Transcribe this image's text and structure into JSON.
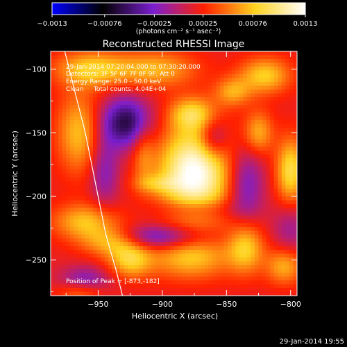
{
  "chart_data": {
    "type": "heatmap",
    "title": "Reconstructed RHESSI Image",
    "xlabel": "Heliocentric X (arcsec)",
    "ylabel": "Heliocentric Y (arcsec)",
    "xlim": [
      -987,
      -795
    ],
    "ylim": [
      -278,
      -86
    ],
    "x_ticks": [
      -950,
      -900,
      -850,
      -800
    ],
    "y_ticks": [
      -100,
      -150,
      -200,
      -250
    ],
    "x_tick_labels": [
      "−950",
      "−900",
      "−850",
      "−800"
    ],
    "y_tick_labels": [
      "−100",
      "−150",
      "−200",
      "−250"
    ],
    "colorbar": {
      "range": [
        -0.0013,
        0.0013
      ],
      "ticks": [
        -0.0013,
        -0.00076,
        -0.00025,
        0.00025,
        0.00076,
        0.0013
      ],
      "tick_labels": [
        "−0.0013",
        "−0.00076",
        "−0.00025",
        "0.00025",
        "0.00076",
        "0.0013"
      ],
      "unit_label": "(photons cm⁻² s⁻¹ asec⁻²)",
      "colors": [
        "#0000ff",
        "#000000",
        "#7b1fd0",
        "#ff2000",
        "#ffd21e",
        "#ffffff"
      ]
    },
    "peak": {
      "x": -873,
      "y": -182,
      "value": 0.0013
    },
    "limb_curve": [
      [
        -976,
        -86
      ],
      [
        -960,
        -150
      ],
      [
        -950,
        -200
      ],
      [
        -944,
        -230
      ],
      [
        -936,
        -258
      ],
      [
        -931,
        -278
      ]
    ],
    "annotations": [
      "29-Jan-2014 07:20:04.000 to 07:30:20.000",
      "Detectors: 3F 5F 6F 7F 8F 9F, Att 0",
      "Energy Range: 25.0 - 50.0 keV",
      "Clean     Total counts: 4.04E+04",
      "Position of Peak = [-873,-182]"
    ],
    "sources": [
      {
        "kind": "peak",
        "x": -875,
        "y": -182,
        "amp": 0.00115,
        "sx": 20,
        "sy": 26
      },
      {
        "kind": "pos",
        "x": -877,
        "y": -135,
        "amp": 0.00055,
        "sx": 12,
        "sy": 9
      },
      {
        "kind": "pos",
        "x": -905,
        "y": -100,
        "amp": 0.0005,
        "sx": 22,
        "sy": 10
      },
      {
        "kind": "pos",
        "x": -955,
        "y": -100,
        "amp": 0.0006,
        "sx": 20,
        "sy": 10
      },
      {
        "kind": "pos",
        "x": -965,
        "y": -150,
        "amp": 0.00055,
        "sx": 12,
        "sy": 22
      },
      {
        "kind": "pos",
        "x": -820,
        "y": -105,
        "amp": 0.0006,
        "sx": 14,
        "sy": 10
      },
      {
        "kind": "pos",
        "x": -845,
        "y": -118,
        "amp": 0.00045,
        "sx": 10,
        "sy": 8
      },
      {
        "kind": "pos",
        "x": -825,
        "y": -150,
        "amp": 0.0005,
        "sx": 8,
        "sy": 12
      },
      {
        "kind": "pos",
        "x": -800,
        "y": -180,
        "amp": 0.0007,
        "sx": 8,
        "sy": 18
      },
      {
        "kind": "pos",
        "x": -960,
        "y": -220,
        "amp": 0.00055,
        "sx": 18,
        "sy": 10
      },
      {
        "kind": "pos",
        "x": -940,
        "y": -235,
        "amp": 0.00055,
        "sx": 16,
        "sy": 8
      },
      {
        "kind": "pos",
        "x": -925,
        "y": -250,
        "amp": 0.0006,
        "sx": 12,
        "sy": 10
      },
      {
        "kind": "pos",
        "x": -878,
        "y": -248,
        "amp": 0.00055,
        "sx": 22,
        "sy": 12
      },
      {
        "kind": "pos",
        "x": -835,
        "y": -240,
        "amp": 0.0006,
        "sx": 10,
        "sy": 14
      },
      {
        "kind": "pos",
        "x": -805,
        "y": -255,
        "amp": 0.0005,
        "sx": 10,
        "sy": 10
      },
      {
        "kind": "pos",
        "x": -915,
        "y": -165,
        "amp": 0.0003,
        "sx": 6,
        "sy": 18
      },
      {
        "kind": "pos",
        "x": -905,
        "y": -190,
        "amp": 0.0003,
        "sx": 12,
        "sy": 5
      },
      {
        "kind": "pos",
        "x": -965,
        "y": -275,
        "amp": 0.0003,
        "sx": 12,
        "sy": 6
      },
      {
        "kind": "neg",
        "x": -928,
        "y": -142,
        "amp": -0.0008,
        "sx": 14,
        "sy": 14
      },
      {
        "kind": "neg",
        "x": -903,
        "y": -232,
        "amp": -0.0006,
        "sx": 26,
        "sy": 7
      },
      {
        "kind": "neg",
        "x": -860,
        "y": -155,
        "amp": -0.0005,
        "sx": 8,
        "sy": 11
      },
      {
        "kind": "neg",
        "x": -835,
        "y": -190,
        "amp": -0.0005,
        "sx": 10,
        "sy": 22
      },
      {
        "kind": "neg",
        "x": -945,
        "y": -180,
        "amp": -0.0004,
        "sx": 8,
        "sy": 20
      },
      {
        "kind": "neg",
        "x": -800,
        "y": -225,
        "amp": -0.0003,
        "sx": 10,
        "sy": 14
      },
      {
        "kind": "neg",
        "x": -960,
        "y": -265,
        "amp": -0.0004,
        "sx": 14,
        "sy": 7
      },
      {
        "kind": "neg",
        "x": -875,
        "y": -210,
        "amp": -0.0003,
        "sx": 22,
        "sy": 6
      }
    ],
    "background": 0.00018
  },
  "footer": {
    "timestamp": "29-Jan-2014 19:55"
  }
}
